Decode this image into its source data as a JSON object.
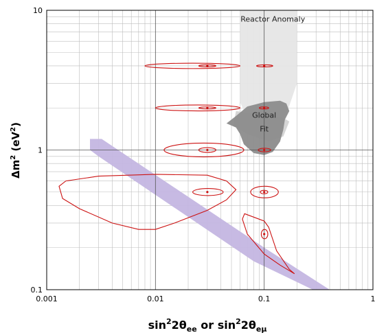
{
  "chart_data": {
    "type": "scatter",
    "x_scale": "log",
    "y_scale": "log",
    "xlim": [
      0.001,
      1
    ],
    "ylim": [
      0.1,
      10
    ],
    "x_ticks": [
      "0.001",
      "0.01",
      "0.1",
      "1"
    ],
    "y_ticks": [
      "0.1",
      "1",
      "10"
    ],
    "x_tick_values": [
      0.001,
      0.01,
      0.1,
      1
    ],
    "y_tick_values": [
      0.1,
      1,
      10
    ],
    "xlabel": {
      "pre": "sin",
      "sup": "2",
      "theta": "2θ",
      "sub1": "ee",
      "mid": " or sin",
      "sup2": "2",
      "theta2": "2θ",
      "sub2": "eμ"
    },
    "ylabel": {
      "pre": "Δm",
      "sup": "2",
      "mid": " (eV",
      "sup2": "2",
      "post": ")"
    },
    "grid": true,
    "annotations": [
      {
        "text": "Reactor Anomaly",
        "x": 0.12,
        "y": 8.3
      },
      {
        "text": "Global",
        "x": 0.1,
        "y": 1.7
      },
      {
        "text": "Fit",
        "x": 0.1,
        "y": 1.36
      }
    ],
    "regions": [
      {
        "name": "reactor-anomaly-band",
        "color": "#e6e6e6",
        "points": [
          [
            0.06,
            10
          ],
          [
            0.2,
            10
          ],
          [
            0.2,
            3.0
          ],
          [
            0.16,
            1.8
          ],
          [
            0.13,
            1.6
          ],
          [
            0.07,
            1.7
          ],
          [
            0.06,
            2.2
          ]
        ]
      },
      {
        "name": "reactor-anomaly-core",
        "color": "#d4d4d4",
        "points": [
          [
            0.055,
            1.9
          ],
          [
            0.09,
            1.8
          ],
          [
            0.15,
            1.7
          ],
          [
            0.17,
            1.6
          ],
          [
            0.15,
            1.25
          ],
          [
            0.11,
            1.15
          ],
          [
            0.07,
            1.3
          ],
          [
            0.052,
            1.5
          ]
        ]
      },
      {
        "name": "global-fit",
        "color": "#8c8c8c",
        "points": [
          [
            0.055,
            1.75
          ],
          [
            0.07,
            2.05
          ],
          [
            0.1,
            2.2
          ],
          [
            0.14,
            2.25
          ],
          [
            0.16,
            2.15
          ],
          [
            0.17,
            1.9
          ],
          [
            0.155,
            1.65
          ],
          [
            0.15,
            1.4
          ],
          [
            0.14,
            1.15
          ],
          [
            0.12,
            0.97
          ],
          [
            0.1,
            0.92
          ],
          [
            0.08,
            0.95
          ],
          [
            0.065,
            1.1
          ],
          [
            0.06,
            1.3
          ],
          [
            0.055,
            1.45
          ],
          [
            0.045,
            1.55
          ]
        ]
      },
      {
        "name": "lsnd-band",
        "color": "#c4b6e2",
        "points": [
          [
            0.0025,
            1.2
          ],
          [
            0.0032,
            1.2
          ],
          [
            0.1,
            0.2
          ],
          [
            0.4,
            0.1
          ],
          [
            0.28,
            0.1
          ],
          [
            0.08,
            0.16
          ],
          [
            0.003,
            0.9
          ],
          [
            0.0025,
            1.0
          ]
        ]
      }
    ],
    "series": [
      {
        "center": [
          0.03,
          4.0
        ],
        "color": "#cc1111",
        "contours": [
          [
            0.008,
            0.06,
            1.045
          ],
          [
            0.025,
            0.036,
            1.012
          ]
        ]
      },
      {
        "center": [
          0.1,
          4.0
        ],
        "color": "#cc1111",
        "contours": [
          [
            0.085,
            0.12,
            1.01
          ]
        ]
      },
      {
        "center": [
          0.03,
          2.0
        ],
        "color": "#cc1111",
        "contours": [
          [
            0.01,
            0.06,
            1.05
          ],
          [
            0.025,
            0.036,
            1.012
          ]
        ]
      },
      {
        "center": [
          0.1,
          2.0
        ],
        "color": "#cc1111",
        "contours": [
          [
            0.09,
            0.11,
            1.015
          ]
        ]
      },
      {
        "center": [
          0.03,
          1.0
        ],
        "color": "#cc1111",
        "contours": [
          [
            0.012,
            0.065,
            1.12
          ],
          [
            0.025,
            0.036,
            1.04
          ]
        ]
      },
      {
        "center": [
          0.1,
          1.0
        ],
        "color": "#cc1111",
        "contours": [
          [
            0.088,
            0.115,
            1.03
          ]
        ]
      },
      {
        "center": [
          0.03,
          0.5
        ],
        "color": "#cc1111",
        "contours": [
          [
            0.022,
            0.042,
            1.06
          ]
        ]
      },
      {
        "center": [
          0.1,
          0.5
        ],
        "color": "#cc1111",
        "contours": [
          [
            0.075,
            0.135,
            1.1
          ],
          [
            0.092,
            0.108,
            1.03
          ]
        ]
      },
      {
        "center": [
          0.1,
          0.25
        ],
        "color": "#cc1111",
        "contours": [
          [
            0.094,
            0.108,
            1.08
          ]
        ]
      }
    ],
    "outlines": [
      {
        "name": "large-contour-05",
        "color": "#cc1111",
        "points": [
          [
            0.0013,
            0.55
          ],
          [
            0.0015,
            0.6
          ],
          [
            0.003,
            0.65
          ],
          [
            0.01,
            0.67
          ],
          [
            0.03,
            0.66
          ],
          [
            0.045,
            0.6
          ],
          [
            0.055,
            0.52
          ],
          [
            0.045,
            0.44
          ],
          [
            0.03,
            0.37
          ],
          [
            0.015,
            0.3
          ],
          [
            0.01,
            0.27
          ],
          [
            0.007,
            0.27
          ],
          [
            0.004,
            0.3
          ],
          [
            0.002,
            0.38
          ],
          [
            0.0014,
            0.45
          ]
        ]
      },
      {
        "name": "triangle-contour-025",
        "color": "#cc1111",
        "points": [
          [
            0.066,
            0.35
          ],
          [
            0.1,
            0.31
          ],
          [
            0.11,
            0.28
          ],
          [
            0.13,
            0.19
          ],
          [
            0.17,
            0.14
          ],
          [
            0.19,
            0.13
          ],
          [
            0.14,
            0.15
          ],
          [
            0.1,
            0.18
          ],
          [
            0.07,
            0.25
          ],
          [
            0.063,
            0.32
          ]
        ]
      }
    ]
  }
}
